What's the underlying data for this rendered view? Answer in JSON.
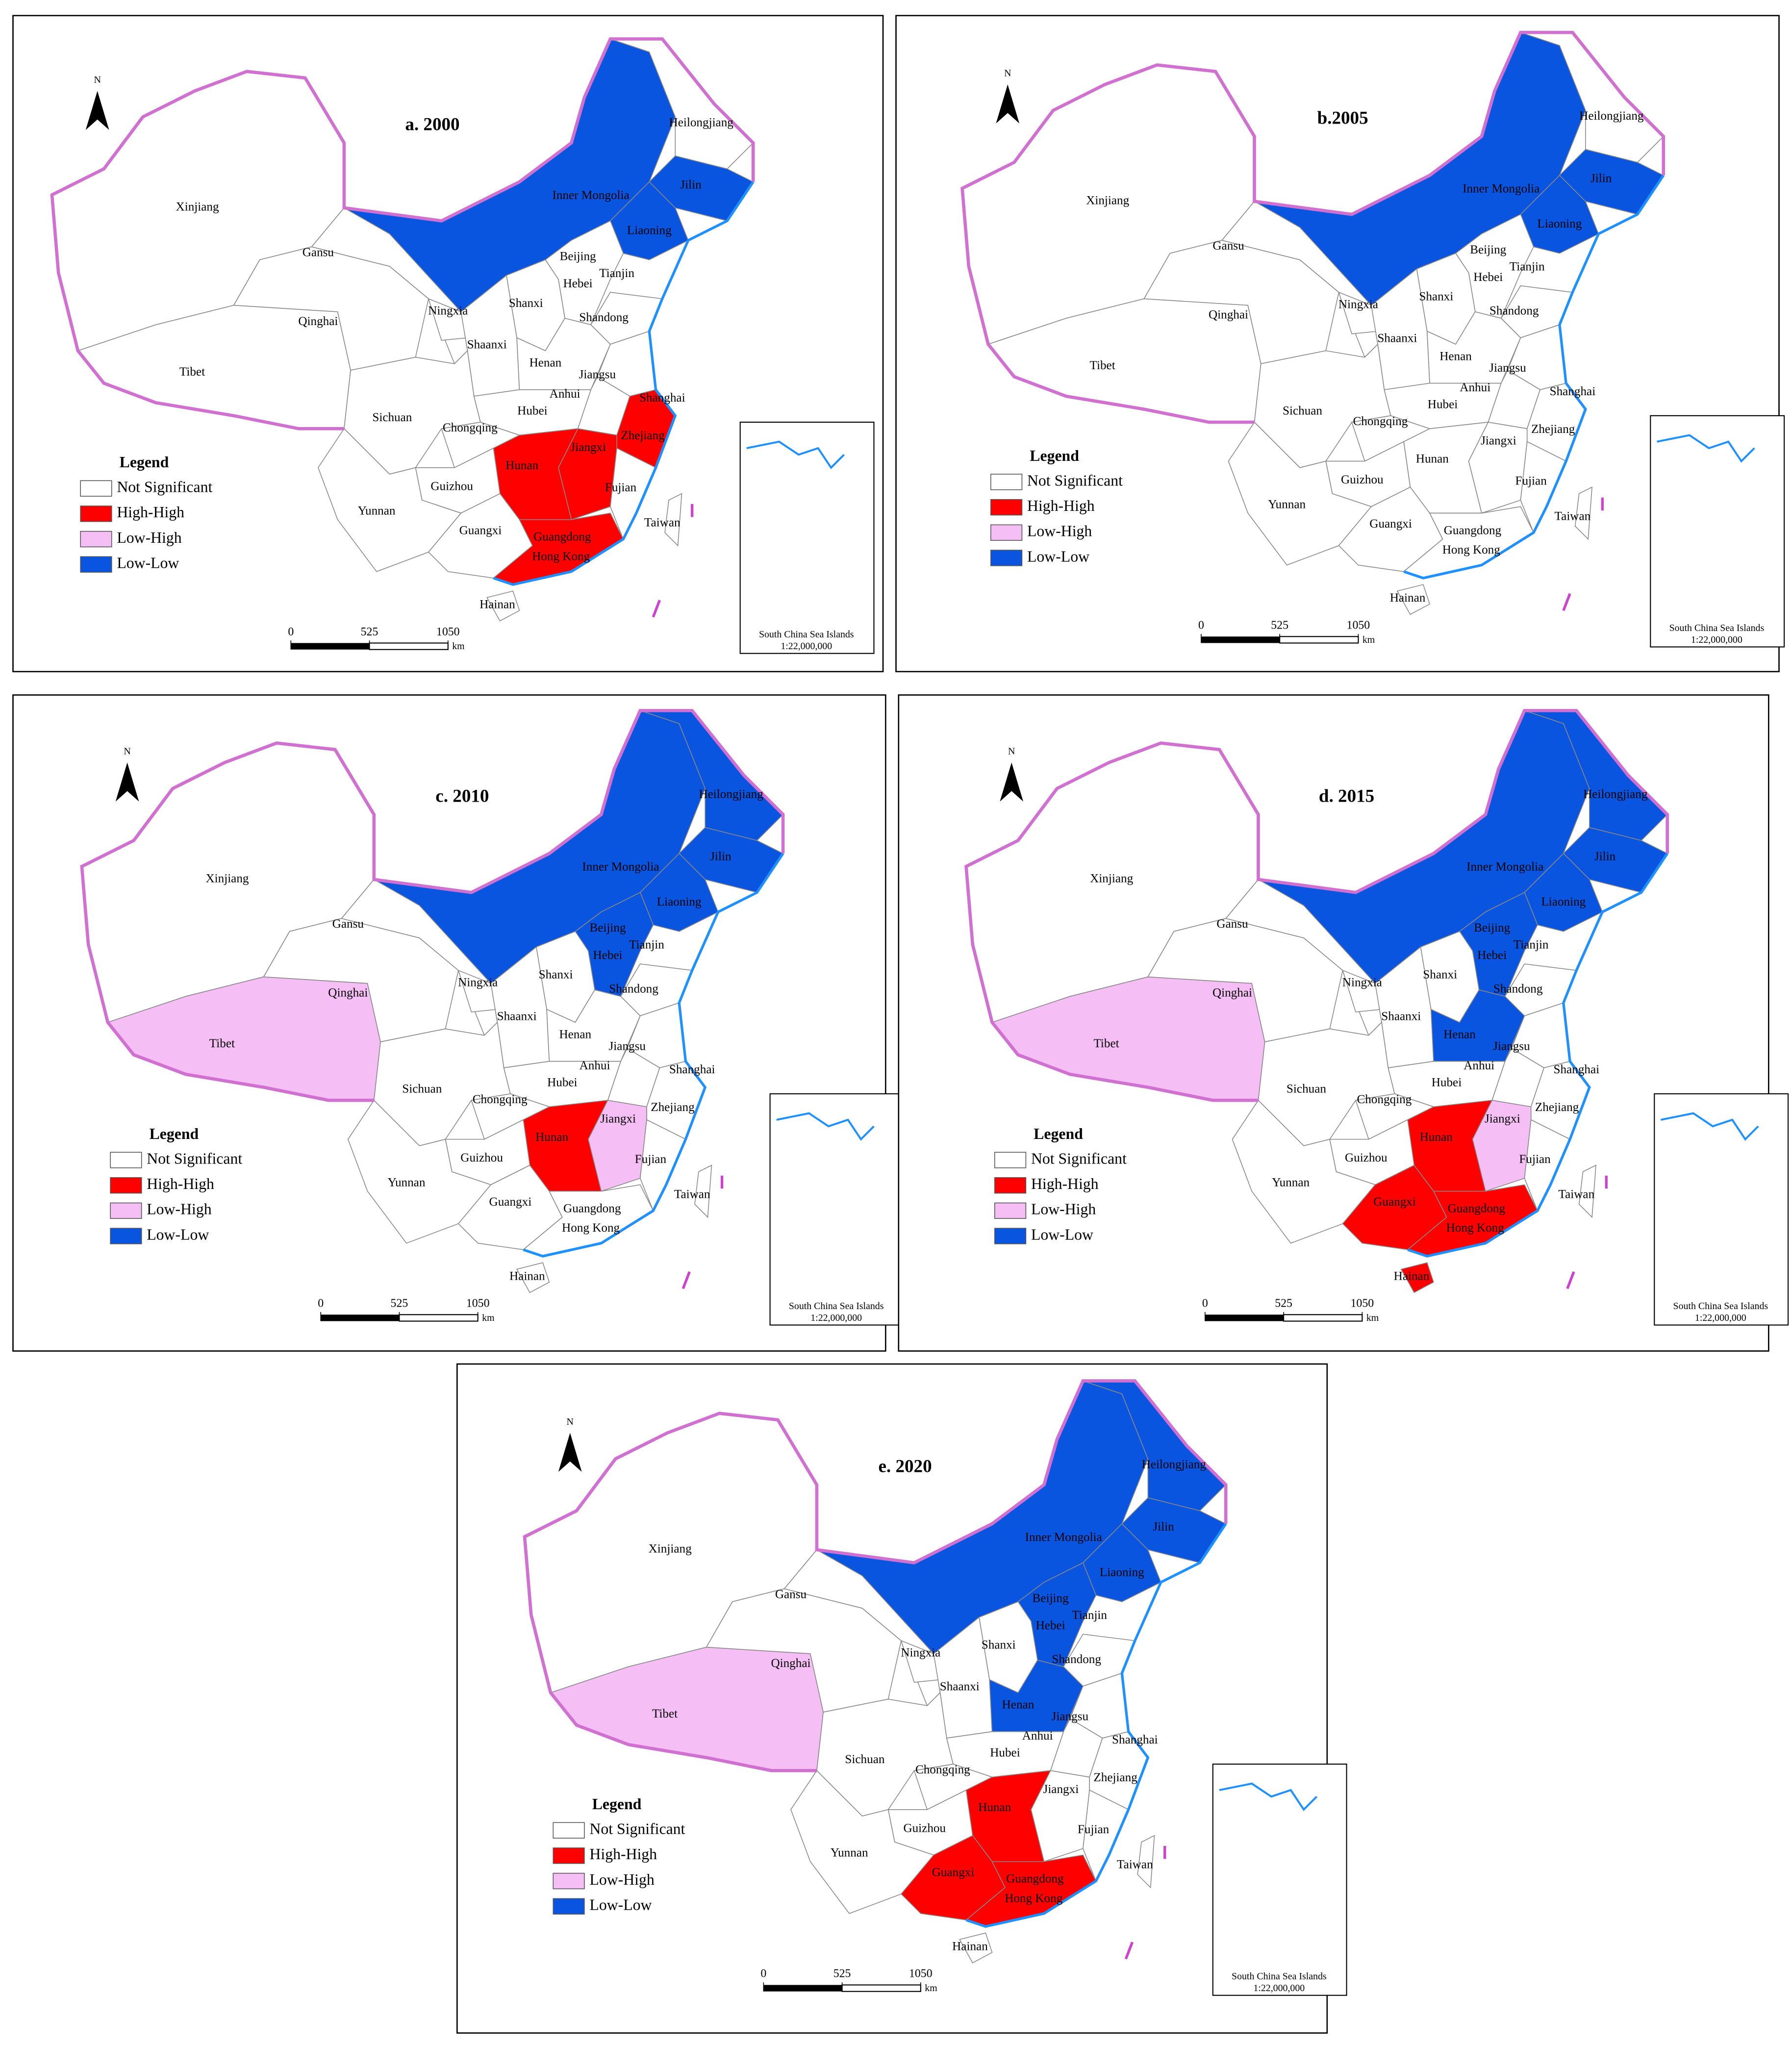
{
  "north": "N",
  "legend": {
    "title": "Legend",
    "items": [
      "Not Significant",
      "High-High",
      "Low-High",
      "Low-Low"
    ],
    "colors": [
      "#ffffff",
      "#ff0000",
      "#f5bff5",
      "#0a55e0"
    ]
  },
  "provinces": [
    "Xinjiang",
    "Tibet",
    "Qinghai",
    "Gansu",
    "Inner Mongolia",
    "Heilongjiang",
    "Jilin",
    "Liaoning",
    "Beijing",
    "Tianjin",
    "Hebei",
    "Shanxi",
    "Ningxia",
    "Shandong",
    "Shaanxi",
    "Henan",
    "Jiangsu",
    "Anhui",
    "Shanghai",
    "Sichuan",
    "Hubei",
    "Chongqing",
    "Zhejiang",
    "Jiangxi",
    "Hunan",
    "Fujian",
    "Guizhou",
    "Yunnan",
    "Guangxi",
    "Taiwan",
    "Guangdong",
    "Hong Kong",
    "Hainan"
  ],
  "scale": {
    "ticks": [
      0,
      525,
      1050
    ],
    "unit": "km"
  },
  "inset": {
    "caption": "South China Sea Islands",
    "scale": "1:22,000,000"
  },
  "panels": [
    {
      "title": "a. 2000",
      "classes": [
        0,
        0,
        0,
        0,
        3,
        0,
        3,
        3,
        0,
        0,
        0,
        0,
        0,
        0,
        0,
        0,
        0,
        0,
        0,
        0,
        0,
        0,
        1,
        1,
        1,
        0,
        0,
        0,
        0,
        0,
        1,
        1,
        0
      ]
    },
    {
      "title": "b.2005",
      "classes": [
        0,
        0,
        0,
        0,
        3,
        0,
        3,
        3,
        0,
        0,
        0,
        0,
        0,
        0,
        0,
        0,
        0,
        0,
        0,
        0,
        0,
        0,
        0,
        0,
        0,
        0,
        0,
        0,
        0,
        0,
        0,
        0,
        0
      ]
    },
    {
      "title": "c. 2010",
      "classes": [
        0,
        2,
        0,
        0,
        3,
        3,
        3,
        3,
        3,
        3,
        3,
        0,
        0,
        0,
        0,
        0,
        0,
        0,
        0,
        0,
        0,
        0,
        0,
        2,
        1,
        0,
        0,
        0,
        0,
        0,
        0,
        0,
        0
      ]
    },
    {
      "title": "d. 2015",
      "classes": [
        0,
        2,
        0,
        0,
        3,
        3,
        3,
        3,
        3,
        3,
        3,
        0,
        0,
        0,
        0,
        3,
        0,
        0,
        0,
        0,
        0,
        0,
        0,
        2,
        1,
        0,
        0,
        0,
        1,
        0,
        1,
        1,
        1
      ]
    },
    {
      "title": "e. 2020",
      "classes": [
        0,
        2,
        0,
        0,
        3,
        3,
        3,
        3,
        3,
        3,
        3,
        0,
        0,
        0,
        0,
        3,
        0,
        0,
        0,
        0,
        0,
        0,
        0,
        0,
        1,
        0,
        0,
        0,
        1,
        0,
        1,
        1,
        0
      ]
    }
  ]
}
